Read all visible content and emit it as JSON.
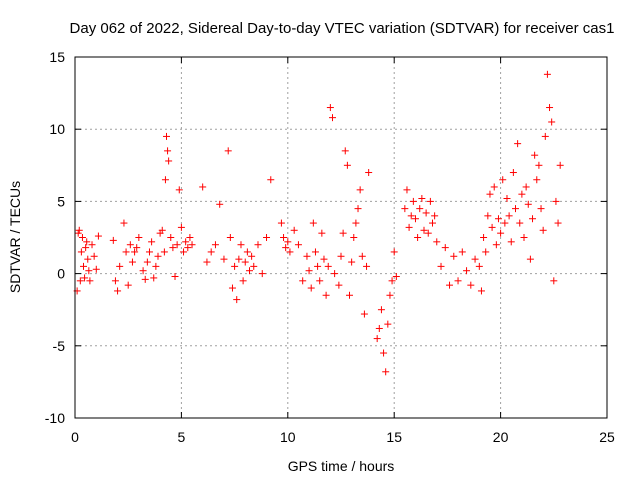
{
  "chart_data": {
    "type": "scatter",
    "title": "Day 062 of 2022, Sidereal Day-to-day VTEC variation (SDTVAR) for receiver cas1",
    "xlabel": "GPS time / hours",
    "ylabel": "SDTVAR / TECUs",
    "xlim": [
      0,
      25
    ],
    "ylim": [
      -10,
      15
    ],
    "x_ticks": [
      0,
      5,
      10,
      15,
      20,
      25
    ],
    "y_ticks": [
      -10,
      -5,
      0,
      5,
      10,
      15
    ],
    "x_tick_labels": [
      "0",
      "5",
      "10",
      "15",
      "20",
      "25"
    ],
    "y_tick_labels": [
      "-10",
      "-5",
      "0",
      "5",
      "10",
      "15"
    ],
    "grid": true,
    "marker": "+",
    "series": [
      {
        "name": "SDTVAR",
        "color": "#ff0000",
        "x": [
          0.1,
          0.15,
          0.2,
          0.25,
          0.3,
          0.35,
          0.4,
          0.45,
          0.5,
          0.55,
          0.6,
          0.65,
          0.7,
          0.8,
          0.9,
          1.0,
          1.1,
          1.8,
          1.9,
          2.0,
          2.1,
          2.3,
          2.4,
          2.5,
          2.6,
          2.7,
          2.8,
          2.9,
          3.0,
          3.2,
          3.3,
          3.4,
          3.5,
          3.6,
          3.7,
          3.8,
          3.9,
          4.0,
          4.1,
          4.2,
          4.25,
          4.3,
          4.35,
          4.4,
          4.5,
          4.6,
          4.7,
          4.8,
          4.9,
          5.0,
          5.1,
          5.2,
          5.3,
          5.4,
          5.5,
          6.0,
          6.2,
          6.4,
          6.6,
          6.8,
          7.0,
          7.2,
          7.3,
          7.4,
          7.5,
          7.6,
          7.7,
          7.8,
          7.9,
          8.0,
          8.1,
          8.2,
          8.3,
          8.4,
          8.6,
          8.8,
          9.0,
          9.2,
          9.7,
          9.8,
          9.9,
          10.0,
          10.1,
          10.3,
          10.5,
          10.7,
          10.9,
          11.0,
          11.1,
          11.2,
          11.3,
          11.4,
          11.5,
          11.6,
          11.7,
          11.8,
          11.9,
          12.0,
          12.1,
          12.2,
          12.4,
          12.5,
          12.6,
          12.7,
          12.8,
          12.9,
          13.0,
          13.1,
          13.2,
          13.3,
          13.4,
          13.5,
          13.6,
          13.7,
          13.8,
          14.2,
          14.3,
          14.4,
          14.5,
          14.6,
          14.7,
          14.8,
          14.9,
          15.0,
          15.1,
          15.5,
          15.6,
          15.7,
          15.8,
          15.9,
          16.0,
          16.1,
          16.2,
          16.3,
          16.4,
          16.5,
          16.6,
          16.7,
          16.8,
          16.9,
          17.0,
          17.2,
          17.4,
          17.6,
          17.8,
          18.0,
          18.2,
          18.4,
          18.6,
          18.8,
          19.0,
          19.1,
          19.2,
          19.3,
          19.4,
          19.5,
          19.6,
          19.7,
          19.8,
          19.9,
          20.0,
          20.1,
          20.2,
          20.3,
          20.4,
          20.5,
          20.6,
          20.7,
          20.8,
          20.9,
          21.0,
          21.1,
          21.2,
          21.3,
          21.4,
          21.5,
          21.6,
          21.7,
          21.8,
          21.9,
          22.0,
          22.1,
          22.2,
          22.3,
          22.4,
          22.5,
          22.6,
          22.7,
          22.8
        ],
        "y": [
          -1.2,
          2.8,
          3.0,
          -0.5,
          1.5,
          2.5,
          0.5,
          -0.3,
          1.8,
          2.2,
          1.0,
          0.2,
          -0.5,
          2.0,
          1.2,
          0.3,
          2.6,
          2.3,
          -0.5,
          -1.2,
          0.5,
          3.5,
          1.5,
          -0.8,
          2.0,
          0.8,
          1.5,
          1.8,
          2.5,
          0.2,
          -0.4,
          0.8,
          1.5,
          2.2,
          -0.3,
          0.5,
          1.2,
          2.8,
          3.0,
          1.5,
          6.5,
          9.5,
          8.5,
          7.8,
          2.5,
          1.8,
          -0.2,
          2.0,
          5.8,
          3.2,
          1.5,
          2.2,
          1.8,
          2.5,
          2.0,
          6.0,
          0.8,
          1.5,
          2.0,
          4.8,
          1.0,
          8.5,
          2.5,
          -1.0,
          0.5,
          -1.8,
          1.0,
          2.0,
          -0.5,
          0.8,
          1.5,
          0.2,
          1.2,
          0.5,
          2.0,
          0.0,
          2.5,
          6.5,
          3.5,
          2.5,
          1.8,
          2.2,
          1.5,
          3.0,
          2.0,
          -0.5,
          1.2,
          0.2,
          -1.0,
          3.5,
          1.5,
          0.5,
          -0.5,
          2.8,
          1.0,
          -1.5,
          0.5,
          11.5,
          10.8,
          0.0,
          -0.8,
          1.2,
          2.8,
          8.5,
          7.5,
          -1.5,
          0.8,
          2.5,
          3.5,
          4.5,
          5.8,
          1.2,
          -2.8,
          0.5,
          7.0,
          -4.5,
          -3.8,
          -2.5,
          -5.5,
          -6.8,
          -3.5,
          -1.5,
          -0.5,
          1.5,
          -0.2,
          4.5,
          5.8,
          3.2,
          4.0,
          5.0,
          3.8,
          2.5,
          4.5,
          5.2,
          3.0,
          4.2,
          2.8,
          5.0,
          3.5,
          4.0,
          2.2,
          0.5,
          1.8,
          -0.8,
          1.2,
          -0.5,
          1.5,
          0.2,
          -0.8,
          1.0,
          0.5,
          -1.2,
          2.5,
          1.5,
          4.0,
          5.5,
          3.2,
          6.0,
          2.0,
          3.8,
          2.8,
          6.5,
          3.5,
          5.2,
          4.0,
          2.2,
          7.0,
          4.5,
          9.0,
          3.5,
          5.5,
          2.5,
          6.0,
          4.8,
          1.0,
          3.8,
          8.2,
          6.5,
          7.5,
          4.5,
          3.0,
          9.5,
          13.8,
          11.5,
          10.5,
          -0.5,
          5.0,
          3.5,
          7.5
        ]
      }
    ]
  }
}
